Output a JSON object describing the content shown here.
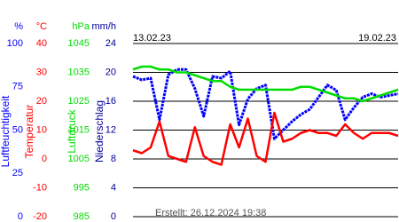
{
  "chart_data": {
    "type": "line",
    "dates": [
      "13.02.23",
      "19.02.23"
    ],
    "created": "Erstellt: 26.12.2024 19:38",
    "axes": [
      {
        "unit": "%",
        "label": "Luftfeuchtigkeit",
        "color": "#0000ff",
        "lim": [
          0,
          100
        ],
        "ticks": [
          100,
          75,
          50,
          25,
          0
        ],
        "values": [
          81,
          79,
          80,
          56,
          82,
          85,
          85,
          74,
          58,
          81,
          80,
          84,
          53,
          68,
          74,
          76,
          45,
          50,
          55,
          59,
          62,
          69,
          76,
          73,
          56,
          63,
          69,
          71,
          69,
          70,
          71
        ]
      },
      {
        "unit": "°C",
        "label": "Temperatur",
        "color": "#ff0000",
        "lim": [
          -20,
          40
        ],
        "ticks": [
          40,
          30,
          20,
          10,
          0,
          -10,
          -20
        ],
        "values": [
          3,
          2,
          4,
          13,
          1,
          0,
          -1,
          11,
          1,
          -1,
          -2,
          12,
          4,
          14,
          1,
          -1,
          16,
          6,
          7,
          9,
          10,
          9,
          9,
          8,
          12,
          9,
          7,
          9,
          9,
          9,
          8
        ]
      },
      {
        "unit": "hPa",
        "label": "Luftdruck",
        "color": "#00dd00",
        "lim": [
          985,
          1045
        ],
        "ticks": [
          1045,
          1035,
          1025,
          1015,
          1005,
          995,
          985
        ],
        "values": [
          1036,
          1037,
          1037,
          1036,
          1036,
          1035,
          1035,
          1034,
          1033,
          1032,
          1032,
          1030,
          1029,
          1029,
          1029,
          1029,
          1029,
          1029,
          1029,
          1030,
          1030,
          1029,
          1028,
          1027,
          1026,
          1026,
          1025,
          1026,
          1027,
          1028,
          1029
        ]
      },
      {
        "unit": "mm/h",
        "label": "Niederschlag",
        "color": "#000099",
        "lim": [
          0,
          24
        ],
        "ticks": [
          24,
          20,
          16,
          12,
          8,
          4,
          0
        ]
      }
    ]
  }
}
